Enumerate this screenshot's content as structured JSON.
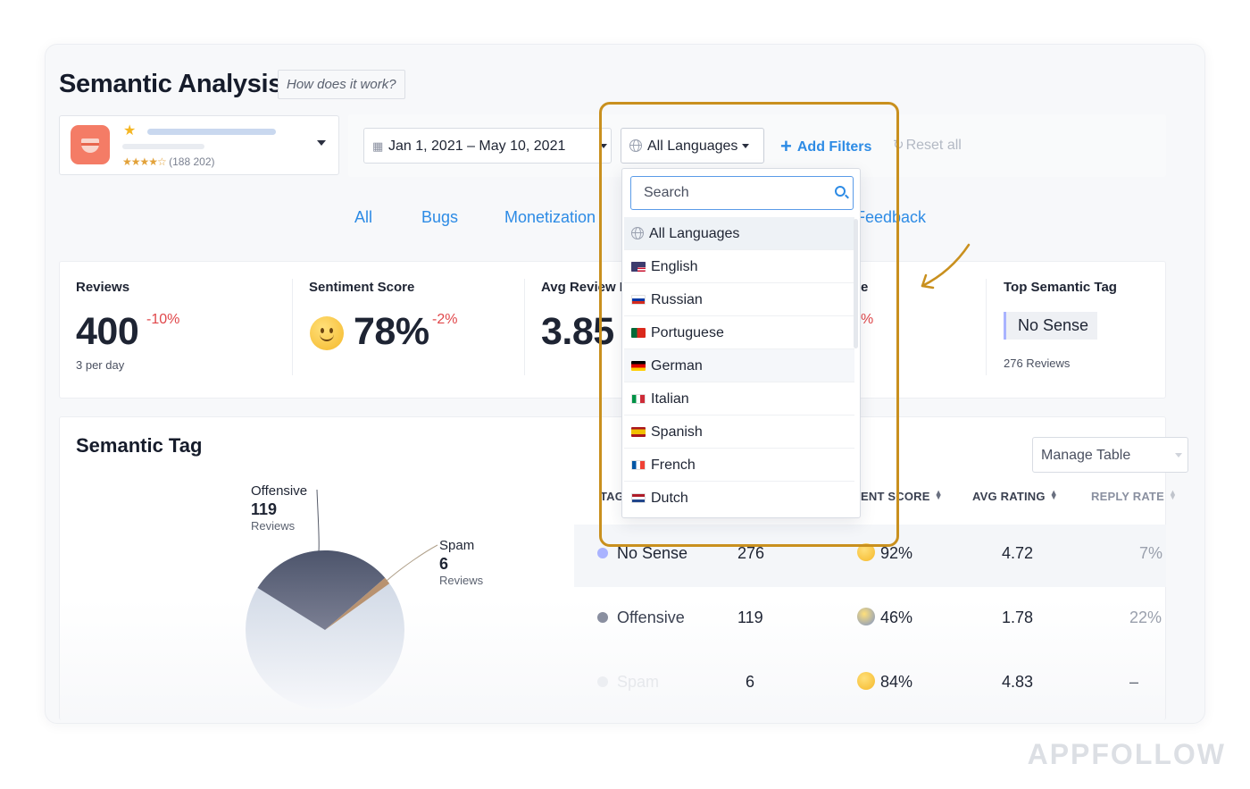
{
  "header": {
    "title": "Semantic Analysis",
    "how_it_works": "How does it work?"
  },
  "app_selector": {
    "rating_stars": "★★★★☆",
    "rating_count": "(188 202)"
  },
  "filters": {
    "date_range": "Jan 1, 2021 – May 10, 2021",
    "language": "All Languages",
    "add_filters": "Add Filters",
    "reset_all": "Reset all"
  },
  "tabs": [
    "All",
    "Bugs",
    "Monetization",
    "Feedback"
  ],
  "metrics": {
    "reviews": {
      "label": "Reviews",
      "value": "400",
      "delta": "-10%",
      "sub": "3 per day"
    },
    "sentiment": {
      "label": "Sentiment Score",
      "value": "78%",
      "delta": "-2%"
    },
    "avg_review": {
      "label": "Avg Review R",
      "value": "3.85"
    },
    "partial": {
      "label": "e",
      "delta": "%"
    },
    "top_tag": {
      "label": "Top Semantic Tag",
      "value": "No Sense",
      "sub": "276 Reviews"
    }
  },
  "semantic_tag": {
    "title": "Semantic Tag",
    "manage_table": "Manage Table",
    "pie_labels": [
      {
        "name": "Offensive",
        "count": "119",
        "unit": "Reviews"
      },
      {
        "name": "Spam",
        "count": "6",
        "unit": "Reviews"
      }
    ],
    "columns": [
      "TAG",
      "ENT SCORE",
      "AVG RATING",
      "REPLY RATE"
    ],
    "rows": [
      {
        "tag": "No Sense",
        "count": "276",
        "score": "92%",
        "rating": "4.72",
        "reply": "7%",
        "color": "#a9b3ff"
      },
      {
        "tag": "Offensive",
        "count": "119",
        "score": "46%",
        "rating": "1.78",
        "reply": "22%",
        "color": "#8a8fa0"
      },
      {
        "tag": "Spam",
        "count": "6",
        "score": "84%",
        "rating": "4.83",
        "reply": "–",
        "color": "#e8e9ee"
      }
    ]
  },
  "language_dropdown": {
    "search_placeholder": "Search",
    "options": [
      {
        "label": "All Languages",
        "icon": "globe-icon"
      },
      {
        "label": "English",
        "icon": "flag-us-icon"
      },
      {
        "label": "Russian",
        "icon": "flag-ru-icon"
      },
      {
        "label": "Portuguese",
        "icon": "flag-pt-icon"
      },
      {
        "label": "German",
        "icon": "flag-de-icon"
      },
      {
        "label": "Italian",
        "icon": "flag-it-icon"
      },
      {
        "label": "Spanish",
        "icon": "flag-es-icon"
      },
      {
        "label": "French",
        "icon": "flag-fr-icon"
      },
      {
        "label": "Dutch",
        "icon": "flag-nl-icon"
      }
    ]
  },
  "colors": {
    "accent": "#2d8be5",
    "negative": "#e0474a",
    "highlight_frame": "#c9901e",
    "app_icon": "#f47c66"
  },
  "watermark": "APPFOLLOW"
}
